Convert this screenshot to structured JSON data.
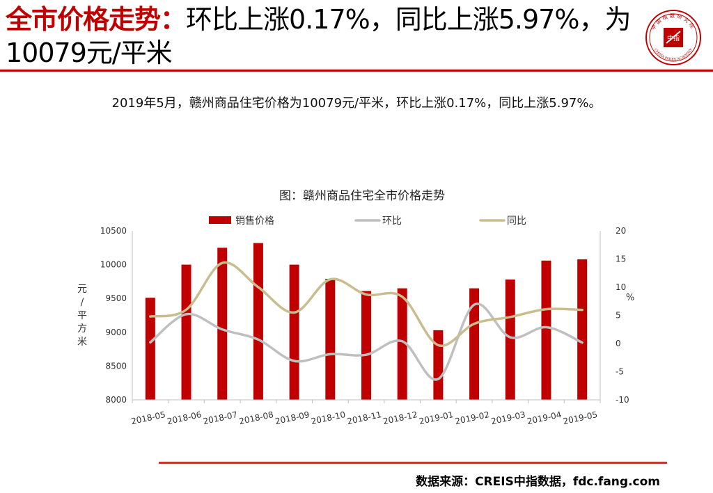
{
  "header": {
    "title_highlight": "全市价格走势：",
    "title_rest": "环比上涨0.17%，同比上涨5.97%，为10079元/平米"
  },
  "logo": {
    "icon": "china-index-academy-seal-icon",
    "top_text": "中国指数研究院",
    "bottom_text": "CHINA INDEX ACADEMY",
    "center_text": "中指"
  },
  "summary": "2019年5月，赣州商品住宅价格为10079元/平米，环比上涨0.17%，同比上涨5.97%。",
  "chart_data": {
    "type": "bar+line",
    "title": "图：赣州商品住宅全市价格走势",
    "categories": [
      "2018-05",
      "2018-06",
      "2018-07",
      "2018-08",
      "2018-09",
      "2018-10",
      "2018-11",
      "2018-12",
      "2019-01",
      "2019-02",
      "2019-03",
      "2019-04",
      "2019-05"
    ],
    "series": [
      {
        "name": "销售价格",
        "kind": "bar",
        "axis": "left",
        "color": "#c00000",
        "values": [
          9510,
          10000,
          10250,
          10320,
          10000,
          9790,
          9610,
          9650,
          9030,
          9650,
          9780,
          10060,
          10079
        ]
      },
      {
        "name": "环比",
        "kind": "line",
        "axis": "right",
        "color": "#bfbfbf",
        "values": [
          0.2,
          5.2,
          2.5,
          0.7,
          -3.1,
          -1.9,
          -2.0,
          0.4,
          -6.3,
          6.9,
          1.1,
          2.9,
          0.17
        ]
      },
      {
        "name": "同比",
        "kind": "line",
        "axis": "right",
        "color": "#c9bd8f",
        "values": [
          4.8,
          6.0,
          14.3,
          10.0,
          5.5,
          11.4,
          8.7,
          8.3,
          -0.3,
          3.5,
          4.7,
          6.1,
          5.97
        ]
      }
    ],
    "ylabel_left": "元/平方米",
    "ylabel_right": "%",
    "ylim_left": [
      8000,
      10500
    ],
    "yticks_left": [
      "8000",
      "8500",
      "9000",
      "9500",
      "10000",
      "10500"
    ],
    "ylim_right": [
      -10,
      20
    ],
    "yticks_right": [
      "-10",
      "-5",
      "0",
      "5",
      "10",
      "15",
      "20"
    ],
    "legend_position": "top"
  },
  "footer": {
    "source": "数据来源：CREIS中指数据，fdc.fang.com"
  }
}
